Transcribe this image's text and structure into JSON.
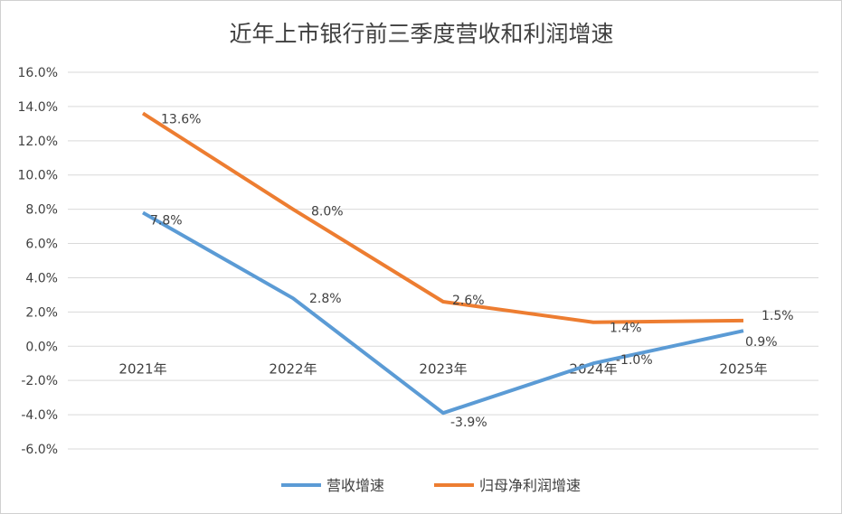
{
  "chart_data": {
    "type": "line",
    "title": "近年上市银行前三季度营收和利润增速",
    "categories": [
      "2021年",
      "2022年",
      "2023年",
      "2024年",
      "2025年"
    ],
    "series": [
      {
        "name": "营收增速",
        "values": [
          7.8,
          2.8,
          -3.9,
          -1.0,
          0.9
        ],
        "labels": [
          "7.8%",
          "2.8%",
          "-3.9%",
          "-1.0%",
          "0.9%"
        ],
        "color": "#5b9bd5"
      },
      {
        "name": "归母净利润增速",
        "values": [
          13.6,
          8.0,
          2.6,
          1.4,
          1.5
        ],
        "labels": [
          "13.6%",
          "8.0%",
          "2.6%",
          "1.4%",
          "1.5%"
        ],
        "color": "#ed7d31"
      }
    ],
    "ylim": [
      -6,
      16
    ],
    "yticks": [
      "16.0%",
      "14.0%",
      "12.0%",
      "10.0%",
      "8.0%",
      "6.0%",
      "4.0%",
      "2.0%",
      "0.0%",
      "-2.0%",
      "-4.0%",
      "-6.0%"
    ],
    "grid": true,
    "legend": "bottom"
  }
}
